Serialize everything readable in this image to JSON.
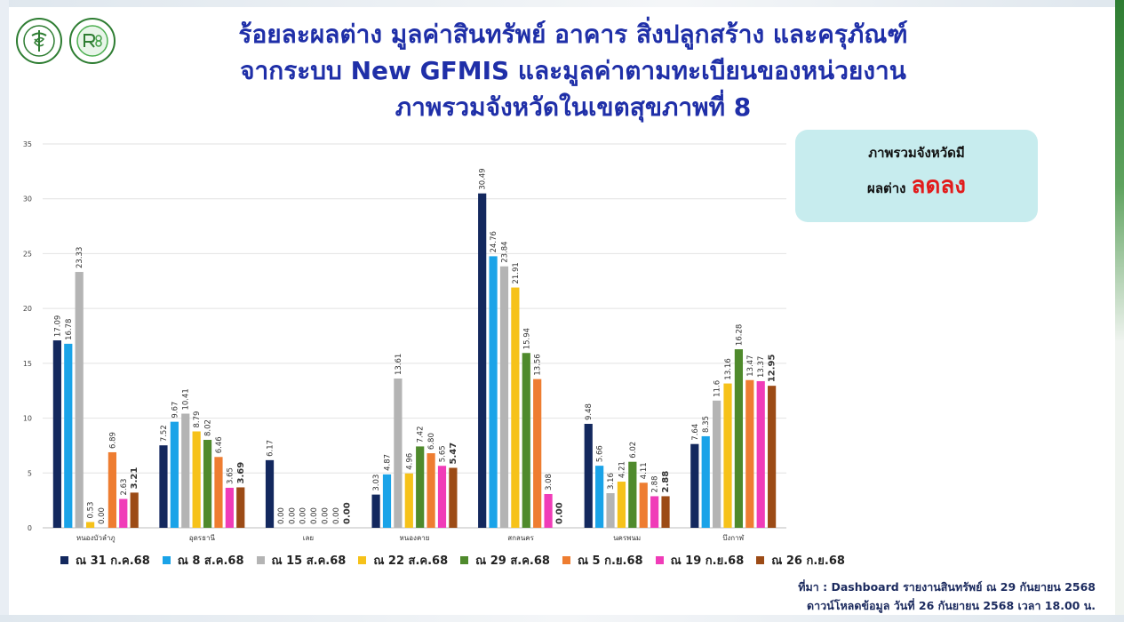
{
  "header": {
    "title_lines": [
      "ร้อยละผลต่าง มูลค่าสินทรัพย์ อาคาร สิ่งปลูกสร้าง และครุภัณฑ์",
      "จากระบบ New GFMIS และมูลค่าตามทะเบียนของหน่วยงาน",
      "ภาพรวมจังหวัดในเขตสุขภาพที่ 8"
    ],
    "logo_icons": [
      "ministry-of-public-health-logo",
      "r8-way-logo"
    ]
  },
  "callout": {
    "line1": "ภาพรวมจังหวัดมี",
    "line2_prefix": "ผลต่าง",
    "line2_highlight": "ลดลง",
    "highlight_color": "#e21c1c"
  },
  "source": {
    "line1": "ที่มา : Dashboard รายงานสินทรัพย์ ณ 29 กันยายน 2568",
    "line2": "ดาวน์โหลดข้อมูล วันที่ 26 กันยายน 2568 เวลา 18.00 น."
  },
  "chart_data": {
    "type": "bar",
    "title": "",
    "xlabel": "",
    "ylabel": "",
    "ylim": [
      0,
      35
    ],
    "yticks": [
      "0",
      "5",
      "10",
      "15",
      "20",
      "25",
      "30",
      "35"
    ],
    "grid": true,
    "legend_position": "bottom",
    "categories": [
      "หนองบัวลำภู",
      "อุดรธานี",
      "เลย",
      "หนองคาย",
      "สกลนคร",
      "นครพนม",
      "บึงกาฬ"
    ],
    "series": [
      {
        "name": "ณ 31 ก.ค.68",
        "color": "#13285e",
        "values": [
          17.09,
          7.52,
          6.17,
          3.03,
          30.49,
          9.48,
          7.64
        ],
        "labels": [
          "17.09",
          "7.52",
          "6.17",
          "3.03",
          "30.49",
          "9.48",
          "7.64"
        ]
      },
      {
        "name": "ณ 8 ส.ค.68",
        "color": "#1aa3e8",
        "values": [
          16.78,
          9.67,
          0.0,
          4.87,
          24.76,
          5.66,
          8.35
        ],
        "labels": [
          "16.78",
          "9.67",
          "0.00",
          "4.87",
          "24.76",
          "5.66",
          "8.35"
        ]
      },
      {
        "name": "ณ 15 ส.ค.68",
        "color": "#b4b4b4",
        "values": [
          23.33,
          10.41,
          0.0,
          13.61,
          23.84,
          3.16,
          11.6
        ],
        "labels": [
          "23.33",
          "10.41",
          "0.00",
          "13.61",
          "23.84",
          "3.16",
          "11.6"
        ]
      },
      {
        "name": "ณ 22 ส.ค.68",
        "color": "#f6c21a",
        "values": [
          0.53,
          8.79,
          0.0,
          4.96,
          21.91,
          4.21,
          13.16
        ],
        "labels": [
          "0.53",
          "8.79",
          "0.00",
          "4.96",
          "21.91",
          "4.21",
          "13.16"
        ]
      },
      {
        "name": "ณ 29 ส.ค.68",
        "color": "#4f8a2c",
        "values": [
          0.0,
          8.02,
          0.0,
          7.42,
          15.94,
          6.02,
          16.28
        ],
        "labels": [
          "0.00",
          "8.02",
          "0.00",
          "7.42",
          "15.94",
          "6.02",
          "16.28"
        ]
      },
      {
        "name": "ณ 5 ก.ย.68",
        "color": "#ee7d31",
        "values": [
          6.89,
          6.46,
          0.0,
          6.8,
          13.56,
          4.11,
          13.47
        ],
        "labels": [
          "6.89",
          "6.46",
          "0.00",
          "6.80",
          "13.56",
          "4.11",
          "13.47"
        ]
      },
      {
        "name": "ณ 19 ก.ย.68",
        "color": "#f03cb8",
        "values": [
          2.63,
          3.65,
          0.0,
          5.65,
          3.08,
          2.88,
          13.37
        ],
        "labels": [
          "2.63",
          "3.65",
          "0.00",
          "5.65",
          "3.08",
          "2.88",
          "13.37"
        ]
      },
      {
        "name": "ณ 26 ก.ย.68",
        "color": "#9c4b16",
        "values": [
          3.21,
          3.69,
          0.0,
          5.47,
          0.0,
          2.88,
          12.95
        ],
        "labels": [
          "3.21",
          "3.69",
          "0.00",
          "5.47",
          "0.00",
          "2.88",
          "12.95"
        ]
      }
    ]
  }
}
